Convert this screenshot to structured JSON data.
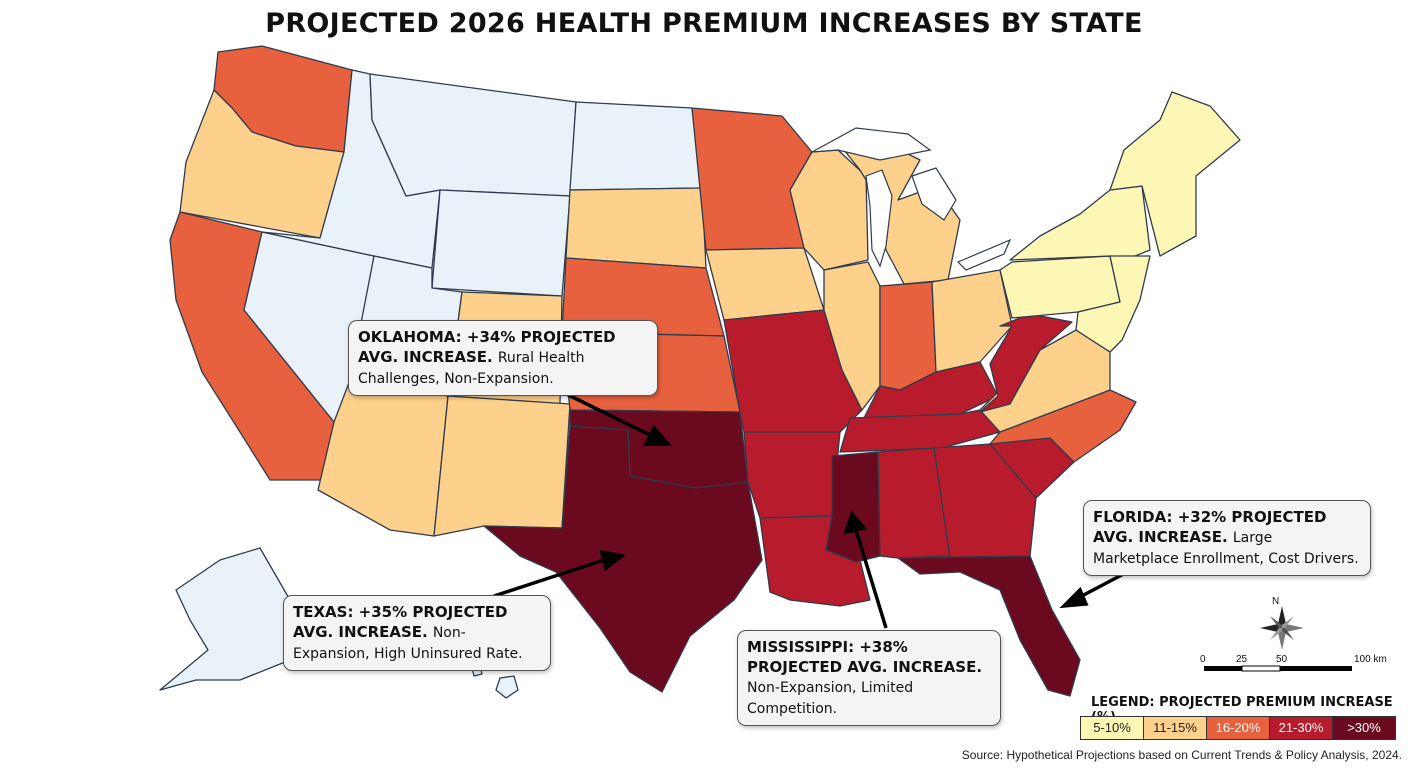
{
  "title": "PROJECTED 2026 HEALTH PREMIUM INCREASES BY STATE",
  "legend": {
    "title": "LEGEND: PROJECTED PREMIUM INCREASE (%)",
    "bins": [
      {
        "label": "5-10%",
        "color": "#fdf7b5",
        "text_color": "#222222"
      },
      {
        "label": "11-15%",
        "color": "#fdd08b",
        "text_color": "#222222"
      },
      {
        "label": "16-20%",
        "color": "#e8613e",
        "text_color": "#ffffff"
      },
      {
        "label": "21-30%",
        "color": "#b81c2c",
        "text_color": "#ffffff"
      },
      {
        "label": ">30%",
        "color": "#6b0a1e",
        "text_color": "#ffffff"
      }
    ]
  },
  "no_data_color": "#eaf2f9",
  "states": {
    "WA": "16-20%",
    "OR": "11-15%",
    "CA": "16-20%",
    "ID": "none",
    "NV": "none",
    "MT": "none",
    "WY": "none",
    "UT": "none",
    "CO": "11-15%",
    "AZ": "11-15%",
    "NM": "11-15%",
    "ND": "none",
    "SD": "11-15%",
    "NE": "16-20%",
    "KS": "16-20%",
    "OK": ">30%",
    "TX": ">30%",
    "MN": "16-20%",
    "IA": "11-15%",
    "MO": "21-30%",
    "AR": "21-30%",
    "LA": "21-30%",
    "WI": "11-15%",
    "IL": "11-15%",
    "MI": "11-15%",
    "IN": "16-20%",
    "OH": "11-15%",
    "KY": "21-30%",
    "TN": "21-30%",
    "MS": ">30%",
    "AL": "21-30%",
    "GA": "21-30%",
    "FL": ">30%",
    "SC": "21-30%",
    "NC": "16-20%",
    "VA": "11-15%",
    "WV": "21-30%",
    "PA": "5-10%",
    "NY": "5-10%",
    "NE_REGION": "5-10%",
    "AK": "none",
    "HI": "none"
  },
  "callouts": [
    {
      "id": "oklahoma",
      "headline": "OKLAHOMA: +34% PROJECTED AVG. INCREASE.",
      "note": "Rural Health Challenges, Non-Expansion."
    },
    {
      "id": "texas",
      "headline": "TEXAS: +35% PROJECTED AVG. INCREASE.",
      "note": "Non-Expansion, High Uninsured Rate."
    },
    {
      "id": "mississippi",
      "headline": "MISSISSIPPI: +38% PROJECTED AVG. INCREASE.",
      "note": "Non-Expansion, Limited Competition."
    },
    {
      "id": "florida",
      "headline": "FLORIDA: +32% PROJECTED AVG. INCREASE.",
      "note": "Large Marketplace Enrollment, Cost Drivers."
    }
  ],
  "compass_label": "N",
  "scale_bar": {
    "ticks": [
      "0",
      "25",
      "50",
      "100 km"
    ]
  },
  "source": "Source: Hypothetical Projections based on Current Trends & Policy Analysis, 2024."
}
